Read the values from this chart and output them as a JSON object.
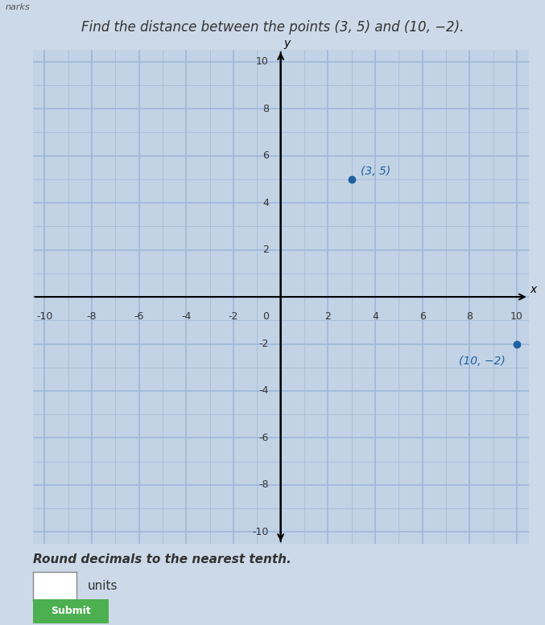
{
  "title": "Find the distance between the points (3, 5) and (10, −2).",
  "header": "narks",
  "point1": [
    3,
    5
  ],
  "point2": [
    10,
    -2
  ],
  "point1_label": "(3, 5)",
  "point2_label": "(10, −2)",
  "xlim": [
    -10,
    10
  ],
  "ylim": [
    -10,
    10
  ],
  "xticks": [
    -10,
    -8,
    -6,
    -4,
    -2,
    0,
    2,
    4,
    6,
    8,
    10
  ],
  "yticks": [
    -10,
    -8,
    -6,
    -4,
    -2,
    0,
    2,
    4,
    6,
    8,
    10
  ],
  "point_color": "#2060a0",
  "label_color": "#2060a0",
  "grid_color": "#9fb8d8",
  "bg_color": "#ccd9e8",
  "plot_bg": "#c2d3e5",
  "subtitle": "Round decimals to the nearest tenth.",
  "input_label": "units",
  "title_fontsize": 12,
  "label_fontsize": 10,
  "tick_fontsize": 9,
  "subtitle_fontsize": 11
}
